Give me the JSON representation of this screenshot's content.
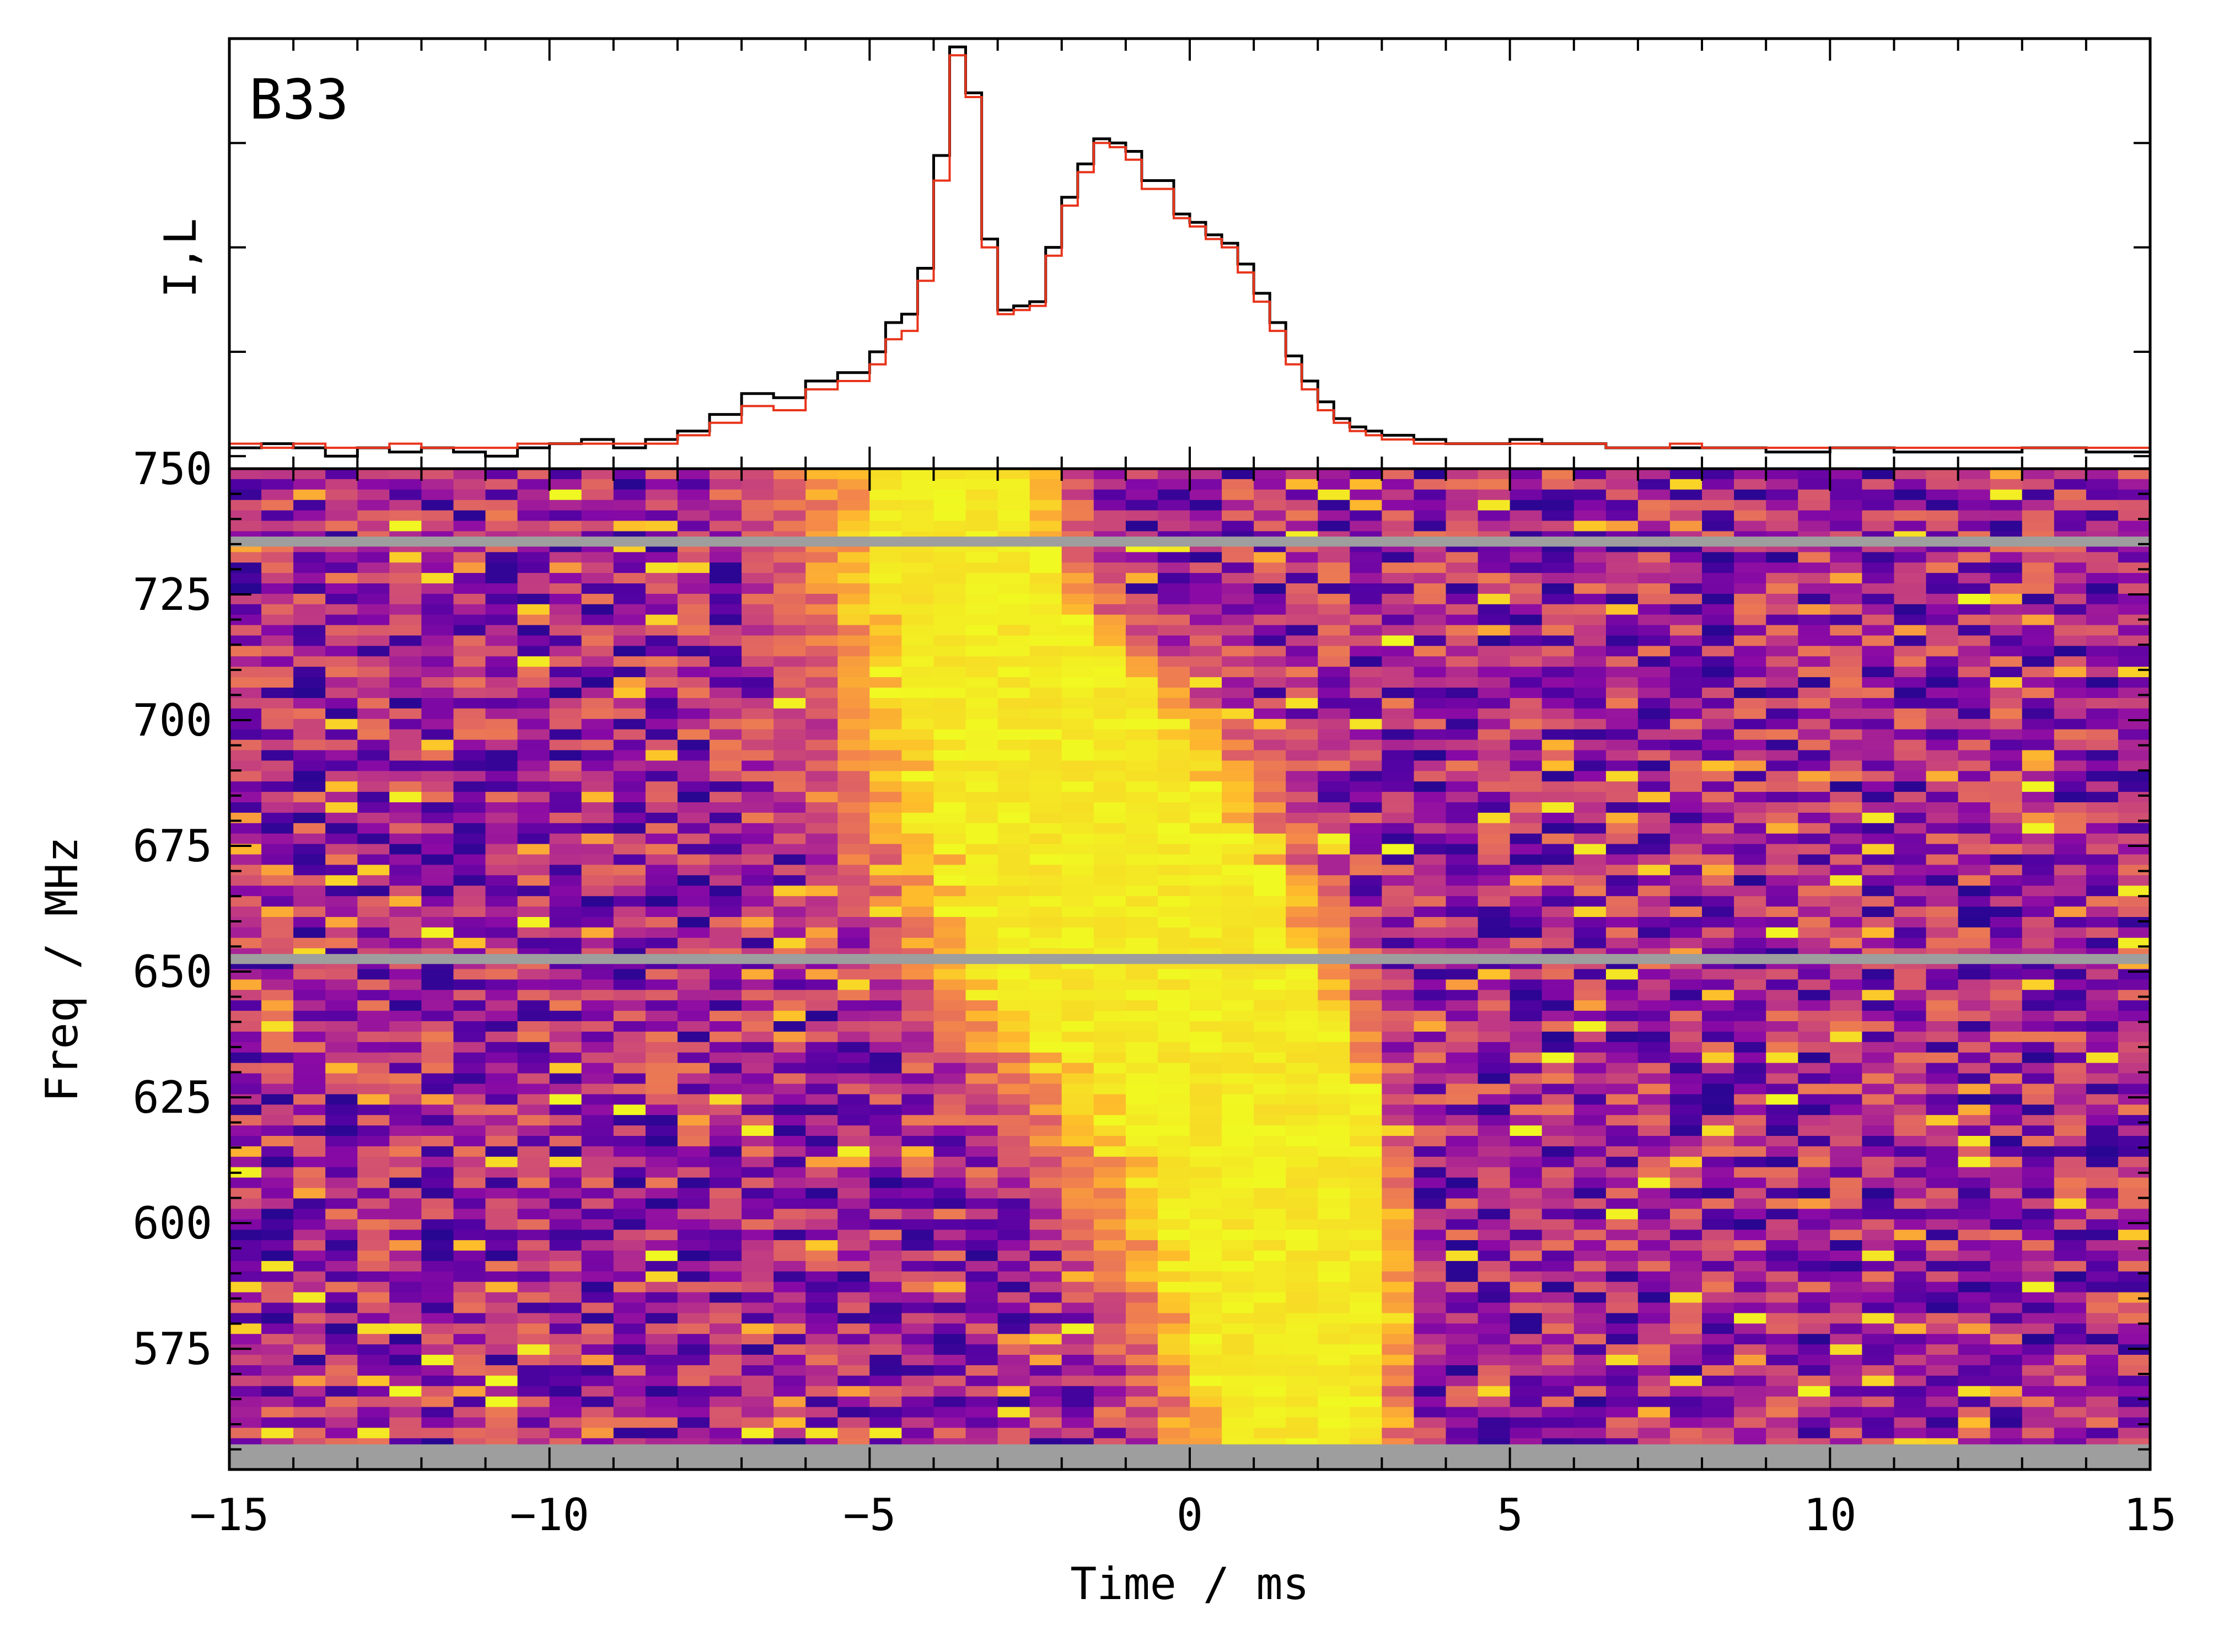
{
  "chart_data": [
    {
      "type": "line",
      "panel": "profile",
      "label": "B33",
      "ylabel": "I,L",
      "xlim": [
        -15,
        15
      ],
      "ylim": [
        -0.03,
        1.0
      ],
      "x_ticks": [
        -15,
        -10,
        -5,
        0,
        5,
        10,
        15
      ],
      "grid": false,
      "series": [
        {
          "name": "I",
          "color": "#000000",
          "x": [
            -15.0,
            -14.5,
            -14.0,
            -13.5,
            -13.0,
            -12.5,
            -12.0,
            -11.5,
            -11.0,
            -10.5,
            -10.0,
            -9.5,
            -9.0,
            -8.5,
            -8.0,
            -7.5,
            -7.0,
            -6.5,
            -6.0,
            -5.5,
            -5.0,
            -4.75,
            -4.5,
            -4.25,
            -4.0,
            -3.75,
            -3.5,
            -3.25,
            -3.0,
            -2.75,
            -2.5,
            -2.25,
            -2.0,
            -1.75,
            -1.5,
            -1.25,
            -1.0,
            -0.75,
            -0.5,
            -0.25,
            0.0,
            0.25,
            0.5,
            0.75,
            1.0,
            1.25,
            1.5,
            1.75,
            2.0,
            2.25,
            2.5,
            2.75,
            3.0,
            3.5,
            4.0,
            4.5,
            5.0,
            5.5,
            6.0,
            6.5,
            7.0,
            7.5,
            8.0,
            9.0,
            10.0,
            11.0,
            12.0,
            13.0,
            14.0,
            15.0
          ],
          "values": [
            0.02,
            0.03,
            0.02,
            0.0,
            0.02,
            0.01,
            0.02,
            0.01,
            0.0,
            0.02,
            0.03,
            0.04,
            0.02,
            0.04,
            0.06,
            0.1,
            0.15,
            0.14,
            0.18,
            0.2,
            0.25,
            0.32,
            0.34,
            0.45,
            0.72,
            0.98,
            0.87,
            0.52,
            0.35,
            0.36,
            0.37,
            0.5,
            0.62,
            0.7,
            0.76,
            0.75,
            0.73,
            0.66,
            0.66,
            0.58,
            0.56,
            0.53,
            0.51,
            0.46,
            0.39,
            0.32,
            0.24,
            0.18,
            0.13,
            0.09,
            0.07,
            0.06,
            0.05,
            0.04,
            0.03,
            0.03,
            0.04,
            0.03,
            0.03,
            0.02,
            0.02,
            0.02,
            0.02,
            0.01,
            0.02,
            0.01,
            0.01,
            0.02,
            0.01,
            0.02
          ]
        },
        {
          "name": "L",
          "color": "#e8341b",
          "x": [
            -15.0,
            -14.5,
            -14.0,
            -13.5,
            -13.0,
            -12.5,
            -12.0,
            -11.5,
            -11.0,
            -10.5,
            -10.0,
            -9.5,
            -9.0,
            -8.5,
            -8.0,
            -7.5,
            -7.0,
            -6.5,
            -6.0,
            -5.5,
            -5.0,
            -4.75,
            -4.5,
            -4.25,
            -4.0,
            -3.75,
            -3.5,
            -3.25,
            -3.0,
            -2.75,
            -2.5,
            -2.25,
            -2.0,
            -1.75,
            -1.5,
            -1.25,
            -1.0,
            -0.75,
            -0.5,
            -0.25,
            0.0,
            0.25,
            0.5,
            0.75,
            1.0,
            1.25,
            1.5,
            1.75,
            2.0,
            2.25,
            2.5,
            2.75,
            3.0,
            3.5,
            4.0,
            4.5,
            5.0,
            5.5,
            6.0,
            6.5,
            7.0,
            7.5,
            8.0,
            9.0,
            10.0,
            11.0,
            12.0,
            13.0,
            14.0,
            15.0
          ],
          "values": [
            0.03,
            0.02,
            0.03,
            0.02,
            0.02,
            0.03,
            0.02,
            0.02,
            0.02,
            0.03,
            0.03,
            0.03,
            0.03,
            0.03,
            0.05,
            0.08,
            0.12,
            0.11,
            0.16,
            0.18,
            0.22,
            0.28,
            0.3,
            0.42,
            0.66,
            0.96,
            0.86,
            0.5,
            0.34,
            0.35,
            0.36,
            0.48,
            0.6,
            0.68,
            0.75,
            0.74,
            0.71,
            0.64,
            0.64,
            0.57,
            0.55,
            0.52,
            0.5,
            0.44,
            0.37,
            0.3,
            0.22,
            0.16,
            0.11,
            0.08,
            0.06,
            0.05,
            0.04,
            0.03,
            0.03,
            0.03,
            0.03,
            0.03,
            0.03,
            0.02,
            0.02,
            0.03,
            0.02,
            0.02,
            0.02,
            0.02,
            0.02,
            0.02,
            0.02,
            0.02
          ]
        }
      ]
    },
    {
      "type": "heatmap",
      "panel": "dynamic-spectrum",
      "xlabel": "Time / ms",
      "ylabel": "Freq / MHz",
      "xlim": [
        -15,
        15
      ],
      "ylim": [
        551,
        750
      ],
      "x_ticks": [
        -15,
        -10,
        -5,
        0,
        5,
        10,
        15
      ],
      "y_ticks": [
        575,
        600,
        625,
        650,
        675,
        700,
        725,
        750
      ],
      "grid": false,
      "colormap": "plasma",
      "masked_color": "#9e9e9e",
      "masked_bands_mhz": [
        [
          734.5,
          736.5
        ],
        [
          651.5,
          653.5
        ],
        [
          551,
          556
        ]
      ],
      "burst_track": {
        "freq_mhz": [
          750,
          725,
          700,
          675,
          650,
          625,
          600,
          575,
          556
        ],
        "start_ms": [
          -4.8,
          -4.8,
          -4.3,
          -3.7,
          -3.4,
          -1.2,
          -0.3,
          0.2,
          0.5
        ],
        "end_ms": [
          -2.5,
          -2.2,
          -0.5,
          0.8,
          2.0,
          2.8,
          3.1,
          3.0,
          2.8
        ],
        "halo_start_ms": [
          -7.5,
          -7.0,
          -6.5,
          -6.3,
          -5.0,
          -4.0,
          -2.5,
          -1.5,
          -1.0
        ],
        "halo_end_ms": [
          -1.5,
          -0.8,
          1.3,
          2.5,
          3.0,
          3.4,
          3.8,
          3.8,
          3.6
        ]
      }
    }
  ]
}
